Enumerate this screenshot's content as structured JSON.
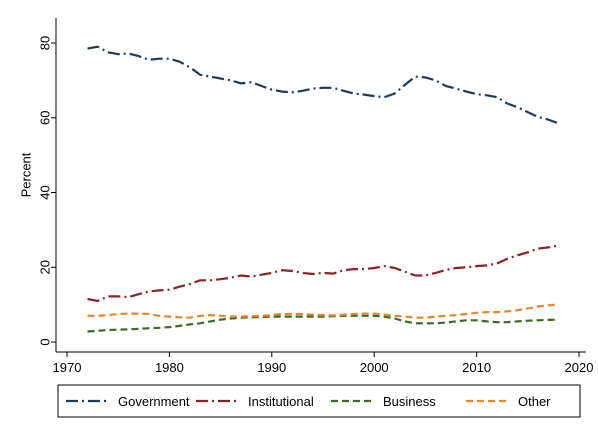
{
  "chart_data": {
    "type": "line",
    "title": "",
    "xlabel": "",
    "ylabel": "Percent",
    "xlim": [
      1970,
      2020
    ],
    "ylim": [
      0,
      80
    ],
    "x_ticks": [
      1970,
      1980,
      1990,
      2000,
      2010,
      2020
    ],
    "y_ticks": [
      0,
      20,
      40,
      60,
      80
    ],
    "grid": false,
    "legend_position": "bottom",
    "series": [
      {
        "name": "Government",
        "color": "#1f3a5f",
        "dash": "long-dash-dot",
        "x": [
          1972,
          1973,
          1974,
          1975,
          1976,
          1977,
          1978,
          1979,
          1980,
          1981,
          1982,
          1983,
          1984,
          1985,
          1986,
          1987,
          1988,
          1989,
          1990,
          1991,
          1992,
          1993,
          1994,
          1995,
          1996,
          1997,
          1998,
          1999,
          2000,
          2001,
          2002,
          2003,
          2004,
          2005,
          2006,
          2007,
          2008,
          2009,
          2010,
          2011,
          2012,
          2013,
          2014,
          2015,
          2016,
          2017,
          2018
        ],
        "values": [
          78.5,
          79.0,
          77.5,
          77.0,
          77.2,
          76.5,
          75.5,
          75.8,
          75.8,
          75.0,
          73.5,
          71.5,
          71.0,
          70.5,
          70.0,
          69.2,
          69.5,
          68.5,
          67.5,
          67.0,
          66.8,
          67.2,
          67.8,
          68.0,
          68.0,
          67.2,
          66.5,
          66.2,
          65.8,
          65.5,
          66.5,
          68.8,
          71.0,
          70.8,
          70.0,
          68.5,
          67.8,
          67.0,
          66.3,
          66.0,
          65.5,
          63.8,
          62.8,
          61.5,
          60.2,
          59.5,
          58.5
        ]
      },
      {
        "name": "Institutional",
        "color": "#8b2323",
        "dash": "long-dash-dot",
        "x": [
          1972,
          1973,
          1974,
          1975,
          1976,
          1977,
          1978,
          1979,
          1980,
          1981,
          1982,
          1983,
          1984,
          1985,
          1986,
          1987,
          1988,
          1989,
          1990,
          1991,
          1992,
          1993,
          1994,
          1995,
          1996,
          1997,
          1998,
          1999,
          2000,
          2001,
          2002,
          2003,
          2004,
          2005,
          2006,
          2007,
          2008,
          2009,
          2010,
          2011,
          2012,
          2013,
          2014,
          2015,
          2016,
          2017,
          2018
        ],
        "values": [
          11.5,
          11.0,
          12.2,
          12.2,
          12.0,
          12.8,
          13.5,
          13.8,
          14.0,
          14.8,
          15.5,
          16.5,
          16.5,
          16.8,
          17.2,
          17.8,
          17.5,
          18.0,
          18.5,
          19.2,
          19.0,
          18.5,
          18.2,
          18.5,
          18.3,
          19.2,
          19.5,
          19.5,
          19.8,
          20.3,
          19.8,
          18.8,
          17.8,
          17.8,
          18.5,
          19.3,
          19.8,
          20.0,
          20.3,
          20.5,
          21.0,
          22.3,
          23.2,
          24.0,
          25.0,
          25.3,
          25.8
        ]
      },
      {
        "name": "Business",
        "color": "#3d6b22",
        "dash": "dash",
        "x": [
          1972,
          1973,
          1974,
          1975,
          1976,
          1977,
          1978,
          1979,
          1980,
          1981,
          1982,
          1983,
          1984,
          1985,
          1986,
          1987,
          1988,
          1989,
          1990,
          1991,
          1992,
          1993,
          1994,
          1995,
          1996,
          1997,
          1998,
          1999,
          2000,
          2001,
          2002,
          2003,
          2004,
          2005,
          2006,
          2007,
          2008,
          2009,
          2010,
          2011,
          2012,
          2013,
          2014,
          2015,
          2016,
          2017,
          2018
        ],
        "values": [
          2.8,
          3.0,
          3.2,
          3.3,
          3.4,
          3.5,
          3.7,
          3.8,
          4.0,
          4.3,
          4.7,
          5.0,
          5.5,
          6.0,
          6.3,
          6.5,
          6.6,
          6.7,
          6.8,
          6.8,
          6.8,
          6.8,
          6.8,
          6.8,
          6.9,
          7.0,
          7.0,
          7.0,
          7.0,
          6.8,
          6.3,
          5.5,
          5.0,
          5.0,
          5.0,
          5.2,
          5.5,
          5.8,
          5.8,
          5.5,
          5.3,
          5.3,
          5.5,
          5.7,
          5.8,
          5.9,
          6.0
        ]
      },
      {
        "name": "Other",
        "color": "#e8862c",
        "dash": "dash",
        "x": [
          1972,
          1973,
          1974,
          1975,
          1976,
          1977,
          1978,
          1979,
          1980,
          1981,
          1982,
          1983,
          1984,
          1985,
          1986,
          1987,
          1988,
          1989,
          1990,
          1991,
          1992,
          1993,
          1994,
          1995,
          1996,
          1997,
          1998,
          1999,
          2000,
          2001,
          2002,
          2003,
          2004,
          2005,
          2006,
          2007,
          2008,
          2009,
          2010,
          2011,
          2012,
          2013,
          2014,
          2015,
          2016,
          2017,
          2018
        ],
        "values": [
          7.0,
          7.0,
          7.2,
          7.5,
          7.6,
          7.6,
          7.5,
          7.0,
          6.8,
          6.6,
          6.5,
          7.0,
          7.2,
          7.0,
          6.8,
          6.8,
          6.9,
          7.0,
          7.2,
          7.5,
          7.5,
          7.5,
          7.3,
          7.2,
          7.1,
          7.3,
          7.5,
          7.6,
          7.6,
          7.3,
          7.0,
          6.8,
          6.5,
          6.5,
          6.8,
          7.0,
          7.2,
          7.5,
          7.8,
          8.0,
          8.0,
          8.2,
          8.5,
          9.0,
          9.5,
          9.8,
          10.0
        ]
      }
    ]
  }
}
